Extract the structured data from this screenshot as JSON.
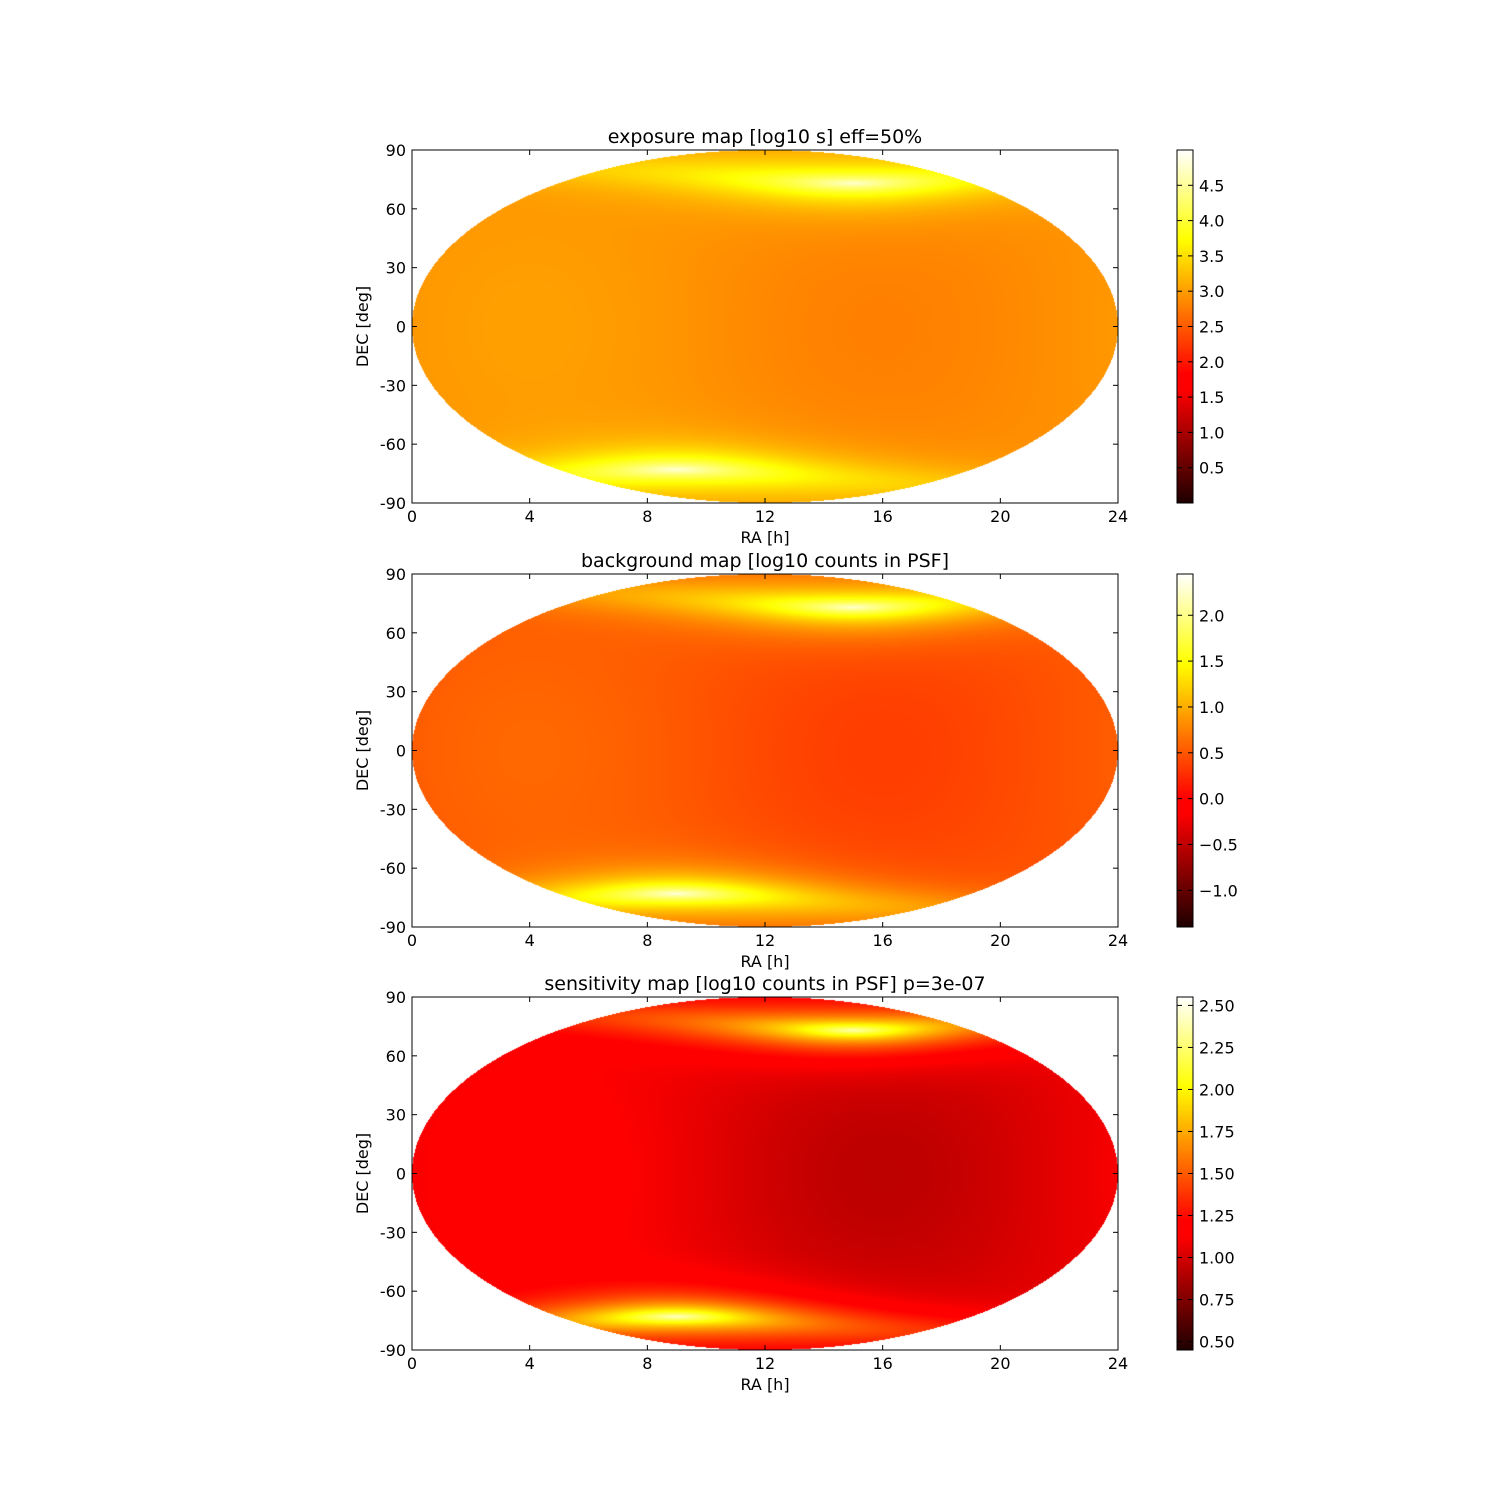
{
  "chart_data": [
    {
      "type": "heatmap",
      "title": "exposure map [log10 s] eff=50%",
      "xlabel": "RA [h]",
      "ylabel": "DEC [deg]",
      "xlim": [
        0,
        24
      ],
      "ylim": [
        -90,
        90
      ],
      "xticks": [
        "0",
        "4",
        "8",
        "12",
        "16",
        "20",
        "24"
      ],
      "yticks": [
        "90",
        "60",
        "30",
        "0",
        "-30",
        "-60",
        "-90"
      ],
      "projection": "elliptical all-sky",
      "colormap": "hot",
      "colorbar": {
        "range": [
          0.0,
          5.0
        ],
        "ticks": [
          "0.5",
          "1.0",
          "1.5",
          "2.0",
          "2.5",
          "3.0",
          "3.5",
          "4.0",
          "4.5"
        ],
        "tick_values": [
          0.5,
          1.0,
          1.5,
          2.0,
          2.5,
          3.0,
          3.5,
          4.0,
          4.5
        ]
      },
      "field": {
        "base": 2.9,
        "hotspots": [
          {
            "ra_h": 15.0,
            "dec_deg": 73,
            "peak": 4.9
          },
          {
            "ra_h": 9.0,
            "dec_deg": -73,
            "peak": 4.9
          }
        ]
      }
    },
    {
      "type": "heatmap",
      "title": "background map [log10 counts in PSF]",
      "xlabel": "RA [h]",
      "ylabel": "DEC [deg]",
      "xlim": [
        0,
        24
      ],
      "ylim": [
        -90,
        90
      ],
      "xticks": [
        "0",
        "4",
        "8",
        "12",
        "16",
        "20",
        "24"
      ],
      "yticks": [
        "90",
        "60",
        "30",
        "0",
        "-30",
        "-60",
        "-90"
      ],
      "projection": "elliptical all-sky",
      "colormap": "hot",
      "colorbar": {
        "range": [
          -1.4,
          2.45
        ],
        "ticks": [
          "−1.0",
          "−0.5",
          "0.0",
          "0.5",
          "1.0",
          "1.5",
          "2.0"
        ],
        "tick_values": [
          -1.0,
          -0.5,
          0.0,
          0.5,
          1.0,
          1.5,
          2.0
        ]
      },
      "field": {
        "base": 0.48,
        "hotspots": [
          {
            "ra_h": 15.0,
            "dec_deg": 73,
            "peak": 2.4
          },
          {
            "ra_h": 9.0,
            "dec_deg": -73,
            "peak": 2.4
          }
        ]
      }
    },
    {
      "type": "heatmap",
      "title": "sensitivity map [log10 counts in PSF] p=3e-07",
      "xlabel": "RA [h]",
      "ylabel": "DEC [deg]",
      "xlim": [
        0,
        24
      ],
      "ylim": [
        -90,
        90
      ],
      "xticks": [
        "0",
        "4",
        "8",
        "12",
        "16",
        "20",
        "24"
      ],
      "yticks": [
        "90",
        "60",
        "30",
        "0",
        "-30",
        "-60",
        "-90"
      ],
      "projection": "elliptical all-sky",
      "colormap": "hot",
      "colorbar": {
        "range": [
          0.45,
          2.55
        ],
        "ticks": [
          "0.50",
          "0.75",
          "1.00",
          "1.25",
          "1.50",
          "1.75",
          "2.00",
          "2.25",
          "2.50"
        ],
        "tick_values": [
          0.5,
          0.75,
          1.0,
          1.25,
          1.5,
          1.75,
          2.0,
          2.25,
          2.5
        ]
      },
      "field": {
        "base": 1.05,
        "hotspots": [
          {
            "ra_h": 15.0,
            "dec_deg": 73,
            "peak": 2.5
          },
          {
            "ra_h": 9.0,
            "dec_deg": -73,
            "peak": 2.5
          }
        ]
      }
    }
  ]
}
